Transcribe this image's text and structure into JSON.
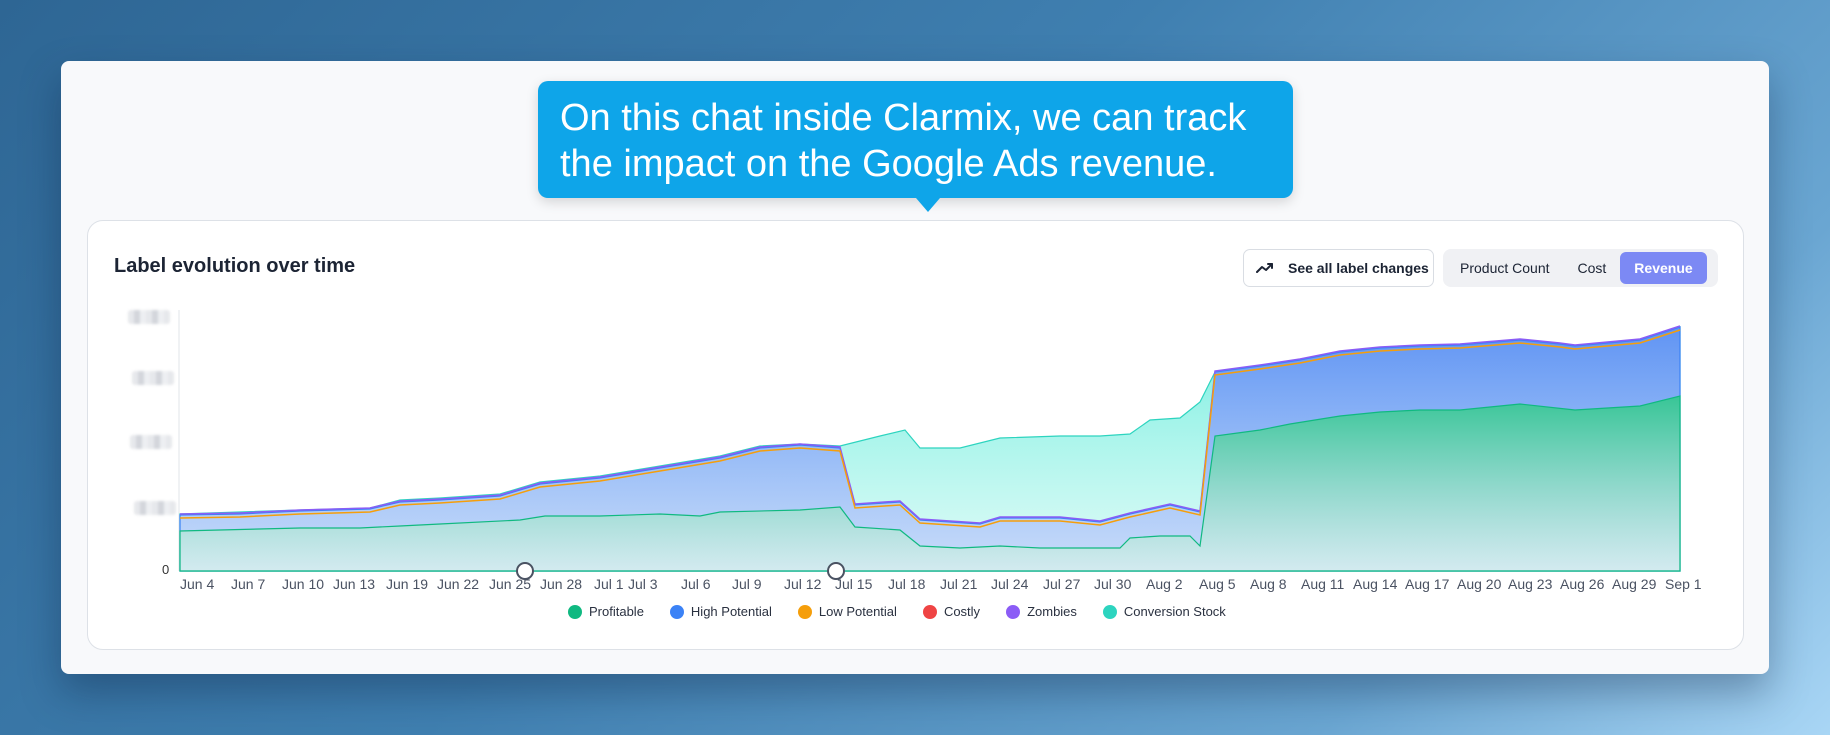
{
  "tooltip": {
    "line1": "On this chat inside Clarmix, we can track",
    "line2": "the impact on the Google Ads revenue."
  },
  "panel": {
    "title": "Label evolution over time",
    "see_all_label": "See all label changes",
    "trend_icon": "trending-up-icon",
    "metrics": [
      "Product Count",
      "Cost",
      "Revenue"
    ],
    "active_metric": "Revenue"
  },
  "chart_data": {
    "type": "area",
    "stacked": true,
    "y_tick_visible": "0",
    "x_ticks": [
      "Jun 4",
      "Jun 7",
      "Jun 10",
      "Jun 13",
      "Jun 19",
      "Jun 22",
      "Jun 25",
      "Jun 28",
      "Jul 1",
      "Jul 3",
      "Jul 6",
      "Jul 9",
      "Jul 12",
      "Jul 15",
      "Jul 18",
      "Jul 21",
      "Jul 24",
      "Jul 27",
      "Jul 30",
      "Aug 2",
      "Aug 5",
      "Aug 8",
      "Aug 11",
      "Aug 14",
      "Aug 17",
      "Aug 20",
      "Aug 23",
      "Aug 26",
      "Aug 29",
      "Sep 1"
    ],
    "series": [
      {
        "name": "Profitable",
        "color": "#10b981"
      },
      {
        "name": "High Potential",
        "color": "#3b82f6"
      },
      {
        "name": "Low Potential",
        "color": "#f59e0b"
      },
      {
        "name": "Costly",
        "color": "#ef4444"
      },
      {
        "name": "Zombies",
        "color": "#8b5cf6"
      },
      {
        "name": "Conversion Stock",
        "color": "#2dd4bf"
      }
    ],
    "legend_position": "bottom",
    "markers_at": [
      "Jun 25",
      "Jul 14"
    ]
  }
}
